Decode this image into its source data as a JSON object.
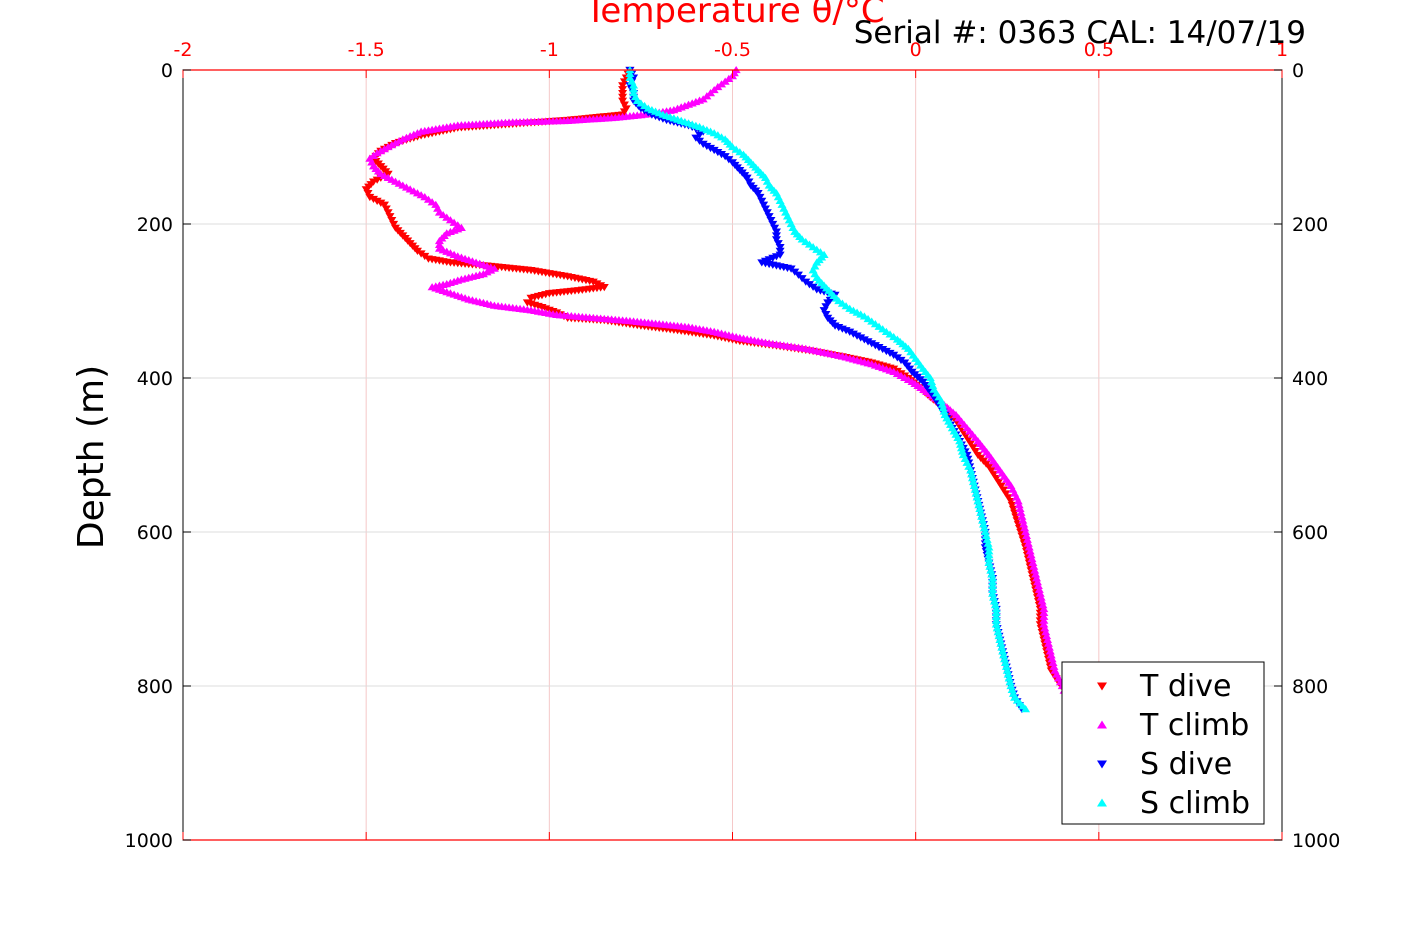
{
  "chart_data": {
    "type": "scatter",
    "title": "Temperature θ/°C",
    "subtitle": "Serial #: 0363  CAL: 14/07/19",
    "xlabel": "Temperature θ/°C",
    "ylabel": "Depth (m)",
    "xlim": [
      -2,
      1
    ],
    "ylim": [
      0,
      1000
    ],
    "y_reversed": true,
    "x_ticks": [
      "-2",
      "-1.5",
      "-1",
      "-0.5",
      "0",
      "0.5",
      "1"
    ],
    "y_ticks": [
      "0",
      "200",
      "400",
      "600",
      "800",
      "1000"
    ],
    "grid": true,
    "legend_position": "bottom-right",
    "series": [
      {
        "name": "T dive",
        "color": "#ff0000",
        "marker": "triangle-down",
        "points": [
          [
            -0.78,
            0
          ],
          [
            -0.79,
            10
          ],
          [
            -0.8,
            20
          ],
          [
            -0.8,
            30
          ],
          [
            -0.8,
            40
          ],
          [
            -0.79,
            50
          ],
          [
            -0.8,
            58
          ],
          [
            -0.95,
            65
          ],
          [
            -1.1,
            70
          ],
          [
            -1.25,
            75
          ],
          [
            -1.35,
            85
          ],
          [
            -1.42,
            95
          ],
          [
            -1.46,
            105
          ],
          [
            -1.48,
            115
          ],
          [
            -1.46,
            125
          ],
          [
            -1.44,
            135
          ],
          [
            -1.48,
            145
          ],
          [
            -1.5,
            155
          ],
          [
            -1.49,
            165
          ],
          [
            -1.45,
            175
          ],
          [
            -1.44,
            185
          ],
          [
            -1.43,
            195
          ],
          [
            -1.42,
            205
          ],
          [
            -1.4,
            215
          ],
          [
            -1.38,
            225
          ],
          [
            -1.36,
            235
          ],
          [
            -1.33,
            245
          ],
          [
            -1.27,
            250
          ],
          [
            -1.15,
            255
          ],
          [
            -1.05,
            260
          ],
          [
            -0.95,
            268
          ],
          [
            -0.88,
            275
          ],
          [
            -0.85,
            282
          ],
          [
            -0.92,
            286
          ],
          [
            -1.0,
            290
          ],
          [
            -1.05,
            296
          ],
          [
            -1.06,
            302
          ],
          [
            -1.02,
            308
          ],
          [
            -0.98,
            315
          ],
          [
            -0.95,
            322
          ],
          [
            -0.85,
            325
          ],
          [
            -0.75,
            332
          ],
          [
            -0.65,
            338
          ],
          [
            -0.55,
            345
          ],
          [
            -0.48,
            352
          ],
          [
            -0.38,
            358
          ],
          [
            -0.28,
            365
          ],
          [
            -0.2,
            372
          ],
          [
            -0.12,
            380
          ],
          [
            -0.06,
            388
          ],
          [
            -0.02,
            400
          ],
          [
            0.01,
            412
          ],
          [
            0.04,
            425
          ],
          [
            0.08,
            440
          ],
          [
            0.11,
            455
          ],
          [
            0.13,
            470
          ],
          [
            0.15,
            485
          ],
          [
            0.17,
            500
          ],
          [
            0.2,
            515
          ],
          [
            0.22,
            530
          ],
          [
            0.24,
            545
          ],
          [
            0.26,
            560
          ],
          [
            0.27,
            575
          ],
          [
            0.28,
            590
          ],
          [
            0.29,
            605
          ],
          [
            0.3,
            620
          ],
          [
            0.31,
            640
          ],
          [
            0.32,
            660
          ],
          [
            0.33,
            680
          ],
          [
            0.34,
            700
          ],
          [
            0.34,
            720
          ],
          [
            0.35,
            740
          ],
          [
            0.36,
            760
          ],
          [
            0.37,
            780
          ],
          [
            0.39,
            795
          ],
          [
            0.41,
            808
          ]
        ]
      },
      {
        "name": "T climb",
        "color": "#ff00ff",
        "marker": "triangle-up",
        "points": [
          [
            -0.49,
            0
          ],
          [
            -0.5,
            8
          ],
          [
            -0.52,
            15
          ],
          [
            -0.54,
            22
          ],
          [
            -0.56,
            30
          ],
          [
            -0.58,
            38
          ],
          [
            -0.62,
            45
          ],
          [
            -0.66,
            52
          ],
          [
            -0.72,
            57
          ],
          [
            -0.82,
            62
          ],
          [
            -0.95,
            66
          ],
          [
            -1.1,
            68
          ],
          [
            -1.25,
            72
          ],
          [
            -1.35,
            80
          ],
          [
            -1.4,
            90
          ],
          [
            -1.44,
            100
          ],
          [
            -1.47,
            108
          ],
          [
            -1.49,
            115
          ],
          [
            -1.48,
            125
          ],
          [
            -1.46,
            135
          ],
          [
            -1.42,
            145
          ],
          [
            -1.38,
            155
          ],
          [
            -1.34,
            165
          ],
          [
            -1.31,
            175
          ],
          [
            -1.3,
            185
          ],
          [
            -1.27,
            195
          ],
          [
            -1.24,
            205
          ],
          [
            -1.28,
            212
          ],
          [
            -1.3,
            222
          ],
          [
            -1.3,
            232
          ],
          [
            -1.25,
            242
          ],
          [
            -1.2,
            250
          ],
          [
            -1.15,
            258
          ],
          [
            -1.18,
            265
          ],
          [
            -1.24,
            272
          ],
          [
            -1.28,
            278
          ],
          [
            -1.32,
            282
          ],
          [
            -1.27,
            290
          ],
          [
            -1.22,
            298
          ],
          [
            -1.15,
            306
          ],
          [
            -1.05,
            312
          ],
          [
            -0.98,
            318
          ],
          [
            -0.88,
            322
          ],
          [
            -0.78,
            326
          ],
          [
            -0.7,
            330
          ],
          [
            -0.62,
            334
          ],
          [
            -0.55,
            340
          ],
          [
            -0.48,
            348
          ],
          [
            -0.4,
            355
          ],
          [
            -0.3,
            362
          ],
          [
            -0.2,
            372
          ],
          [
            -0.12,
            382
          ],
          [
            -0.06,
            392
          ],
          [
            -0.01,
            405
          ],
          [
            0.03,
            418
          ],
          [
            0.07,
            432
          ],
          [
            0.11,
            448
          ],
          [
            0.14,
            465
          ],
          [
            0.17,
            482
          ],
          [
            0.2,
            500
          ],
          [
            0.23,
            520
          ],
          [
            0.26,
            540
          ],
          [
            0.28,
            560
          ],
          [
            0.29,
            580
          ],
          [
            0.3,
            600
          ],
          [
            0.31,
            620
          ],
          [
            0.32,
            640
          ],
          [
            0.33,
            660
          ],
          [
            0.34,
            680
          ],
          [
            0.35,
            700
          ],
          [
            0.35,
            720
          ],
          [
            0.36,
            740
          ],
          [
            0.37,
            760
          ],
          [
            0.38,
            780
          ],
          [
            0.4,
            800
          ],
          [
            0.41,
            812
          ]
        ]
      },
      {
        "name": "S dive",
        "color": "#0000ff",
        "marker": "triangle-down",
        "points": [
          [
            -0.78,
            0
          ],
          [
            -0.77,
            10
          ],
          [
            -0.78,
            20
          ],
          [
            -0.77,
            30
          ],
          [
            -0.77,
            40
          ],
          [
            -0.75,
            50
          ],
          [
            -0.72,
            58
          ],
          [
            -0.68,
            65
          ],
          [
            -0.62,
            72
          ],
          [
            -0.58,
            80
          ],
          [
            -0.6,
            88
          ],
          [
            -0.58,
            96
          ],
          [
            -0.55,
            104
          ],
          [
            -0.52,
            112
          ],
          [
            -0.5,
            120
          ],
          [
            -0.48,
            130
          ],
          [
            -0.46,
            140
          ],
          [
            -0.45,
            150
          ],
          [
            -0.43,
            160
          ],
          [
            -0.42,
            170
          ],
          [
            -0.41,
            180
          ],
          [
            -0.4,
            190
          ],
          [
            -0.39,
            200
          ],
          [
            -0.38,
            210
          ],
          [
            -0.38,
            220
          ],
          [
            -0.37,
            230
          ],
          [
            -0.37,
            240
          ],
          [
            -0.42,
            250
          ],
          [
            -0.34,
            258
          ],
          [
            -0.32,
            266
          ],
          [
            -0.3,
            275
          ],
          [
            -0.27,
            285
          ],
          [
            -0.22,
            292
          ],
          [
            -0.24,
            302
          ],
          [
            -0.25,
            312
          ],
          [
            -0.24,
            322
          ],
          [
            -0.22,
            332
          ],
          [
            -0.18,
            340
          ],
          [
            -0.14,
            350
          ],
          [
            -0.1,
            360
          ],
          [
            -0.06,
            370
          ],
          [
            -0.03,
            380
          ],
          [
            -0.01,
            392
          ],
          [
            0.02,
            405
          ],
          [
            0.04,
            418
          ],
          [
            0.06,
            432
          ],
          [
            0.08,
            448
          ],
          [
            0.1,
            465
          ],
          [
            0.12,
            482
          ],
          [
            0.14,
            500
          ],
          [
            0.15,
            520
          ],
          [
            0.16,
            540
          ],
          [
            0.17,
            560
          ],
          [
            0.18,
            580
          ],
          [
            0.19,
            600
          ],
          [
            0.19,
            620
          ],
          [
            0.2,
            640
          ],
          [
            0.21,
            660
          ],
          [
            0.21,
            680
          ],
          [
            0.22,
            700
          ],
          [
            0.22,
            720
          ],
          [
            0.23,
            740
          ],
          [
            0.24,
            760
          ],
          [
            0.25,
            780
          ],
          [
            0.26,
            800
          ],
          [
            0.27,
            815
          ],
          [
            0.29,
            830
          ]
        ]
      },
      {
        "name": "S climb",
        "color": "#00ffff",
        "marker": "triangle-up",
        "points": [
          [
            -0.78,
            0
          ],
          [
            -0.78,
            10
          ],
          [
            -0.77,
            20
          ],
          [
            -0.77,
            30
          ],
          [
            -0.76,
            40
          ],
          [
            -0.73,
            50
          ],
          [
            -0.69,
            58
          ],
          [
            -0.64,
            66
          ],
          [
            -0.59,
            74
          ],
          [
            -0.55,
            82
          ],
          [
            -0.52,
            90
          ],
          [
            -0.5,
            100
          ],
          [
            -0.47,
            110
          ],
          [
            -0.45,
            120
          ],
          [
            -0.43,
            130
          ],
          [
            -0.41,
            140
          ],
          [
            -0.4,
            150
          ],
          [
            -0.38,
            160
          ],
          [
            -0.37,
            170
          ],
          [
            -0.36,
            180
          ],
          [
            -0.35,
            190
          ],
          [
            -0.34,
            200
          ],
          [
            -0.33,
            210
          ],
          [
            -0.31,
            220
          ],
          [
            -0.28,
            230
          ],
          [
            -0.25,
            240
          ],
          [
            -0.27,
            250
          ],
          [
            -0.28,
            260
          ],
          [
            -0.27,
            270
          ],
          [
            -0.25,
            280
          ],
          [
            -0.23,
            290
          ],
          [
            -0.21,
            300
          ],
          [
            -0.18,
            310
          ],
          [
            -0.14,
            320
          ],
          [
            -0.11,
            330
          ],
          [
            -0.08,
            340
          ],
          [
            -0.05,
            350
          ],
          [
            -0.02,
            362
          ],
          [
            0.0,
            375
          ],
          [
            0.02,
            388
          ],
          [
            0.04,
            400
          ],
          [
            0.05,
            415
          ],
          [
            0.07,
            430
          ],
          [
            0.08,
            448
          ],
          [
            0.1,
            465
          ],
          [
            0.12,
            482
          ],
          [
            0.13,
            500
          ],
          [
            0.15,
            520
          ],
          [
            0.16,
            540
          ],
          [
            0.17,
            560
          ],
          [
            0.18,
            580
          ],
          [
            0.19,
            600
          ],
          [
            0.2,
            620
          ],
          [
            0.2,
            640
          ],
          [
            0.21,
            660
          ],
          [
            0.21,
            680
          ],
          [
            0.22,
            700
          ],
          [
            0.22,
            720
          ],
          [
            0.23,
            740
          ],
          [
            0.24,
            760
          ],
          [
            0.25,
            780
          ],
          [
            0.26,
            800
          ],
          [
            0.27,
            815
          ],
          [
            0.3,
            830
          ]
        ]
      }
    ]
  }
}
